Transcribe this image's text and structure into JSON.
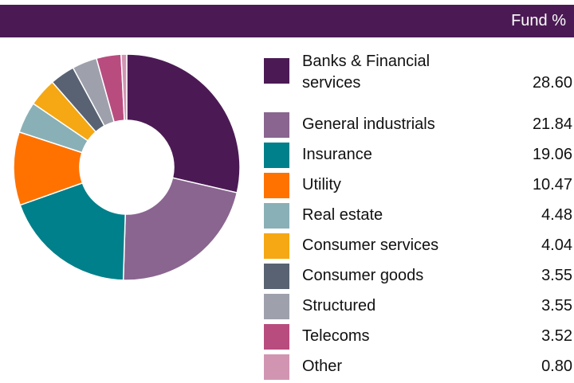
{
  "header": {
    "column_label": "Fund %"
  },
  "chart_data": {
    "type": "pie",
    "variant": "donut",
    "categories": [
      "Banks & Financial services",
      "General industrials",
      "Insurance",
      "Utility",
      "Real estate",
      "Consumer services",
      "Consumer goods",
      "Structured",
      "Telecoms",
      "Other"
    ],
    "label_lines": [
      [
        "Banks & Financial",
        "services"
      ],
      [
        "General industrials"
      ],
      [
        "Insurance"
      ],
      [
        "Utility"
      ],
      [
        "Real estate"
      ],
      [
        "Consumer services"
      ],
      [
        "Consumer goods"
      ],
      [
        "Structured"
      ],
      [
        "Telecoms"
      ],
      [
        "Other"
      ]
    ],
    "values": [
      28.6,
      21.84,
      19.06,
      10.47,
      4.48,
      4.04,
      3.55,
      3.55,
      3.52,
      0.8
    ],
    "value_labels": [
      "28.60",
      "21.84",
      "19.06",
      "10.47",
      "4.48",
      "4.04",
      "3.55",
      "3.55",
      "3.52",
      "0.80"
    ],
    "colors": [
      "#4b1a54",
      "#8a6590",
      "#00808a",
      "#ff7200",
      "#89b0b7",
      "#f5a813",
      "#586272",
      "#9ea1ac",
      "#b84c7f",
      "#d195b2"
    ],
    "legend_position": "right"
  }
}
